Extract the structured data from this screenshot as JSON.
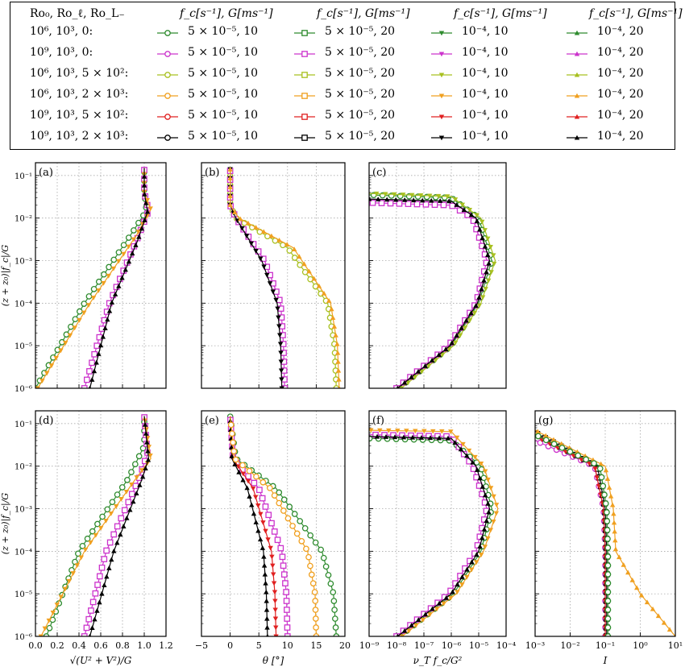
{
  "legend": {
    "row_header": "Ro₀, Ro_ℓ, Ro_L₋",
    "column_header": "f_c[s⁻¹], G[ms⁻¹]",
    "rows": [
      "10⁶, 10³, 0:",
      "10⁹, 10³, 0:",
      "10⁶, 10³, 5 × 10²:",
      "10⁶, 10³, 2 × 10³:",
      "10⁹, 10³, 5 × 10²:",
      "10⁹, 10³, 2 × 10³:"
    ],
    "columns": [
      {
        "label": "5 × 10⁻⁵, 10",
        "marker": "circle"
      },
      {
        "label": "5 × 10⁻⁵, 20",
        "marker": "square"
      },
      {
        "label": "10⁻⁴, 10",
        "marker": "tri-down"
      },
      {
        "label": "10⁻⁴, 20",
        "marker": "tri-up"
      }
    ],
    "row_colors": [
      "#2e8b2e",
      "#cc33cc",
      "#a8c020",
      "#f0a020",
      "#e02020",
      "#000000"
    ]
  },
  "chart_data": [
    {
      "panel": "(a)",
      "type": "line",
      "xscale": "linear",
      "yscale": "log",
      "xlim": [
        0,
        1.2
      ],
      "ylim": [
        1e-06,
        0.2
      ],
      "xlabel": "",
      "ylabel": "(z + z₀)|f_c|/G",
      "xticks": [],
      "yticks": [
        "10⁻⁶",
        "10⁻⁵",
        "10⁻⁴",
        "10⁻³",
        "10⁻²",
        "10⁻¹"
      ],
      "curves": [
        {
          "color": "#2e8b2e",
          "x": [
            0.0,
            0.45,
            0.9,
            1.02,
            1.0,
            1.0
          ],
          "y": [
            1e-06,
            0.0001,
            0.005,
            0.015,
            0.04,
            0.15
          ]
        },
        {
          "color": "#cc33cc",
          "x": [
            0.45,
            0.68,
            0.93,
            1.04,
            1.0,
            1.0
          ],
          "y": [
            1e-06,
            0.0001,
            0.003,
            0.015,
            0.04,
            0.15
          ]
        },
        {
          "color": "#f0a020",
          "x": [
            0.02,
            0.5,
            0.93,
            1.06,
            1.0,
            1.0
          ],
          "y": [
            1e-06,
            0.0001,
            0.004,
            0.016,
            0.04,
            0.15
          ]
        },
        {
          "color": "#000000",
          "x": [
            0.5,
            0.7,
            0.94,
            1.03,
            1.0,
            1.0
          ],
          "y": [
            1e-06,
            0.0001,
            0.003,
            0.014,
            0.04,
            0.15
          ]
        }
      ]
    },
    {
      "panel": "(b)",
      "type": "line",
      "xscale": "linear",
      "yscale": "log",
      "xlim": [
        -5,
        20
      ],
      "ylim": [
        1e-06,
        0.2
      ],
      "xlabel": "",
      "ylabel": "",
      "xticks": [],
      "yticks": [],
      "curves": [
        {
          "color": "#a8c020",
          "x": [
            18.5,
            18.2,
            17,
            10,
            1,
            0,
            0
          ],
          "y": [
            1e-06,
            1e-05,
            0.0001,
            0.002,
            0.01,
            0.02,
            0.15
          ]
        },
        {
          "color": "#cc33cc",
          "x": [
            9.5,
            9.3,
            8.8,
            6,
            1,
            0,
            0
          ],
          "y": [
            1e-06,
            1e-05,
            0.0001,
            0.001,
            0.01,
            0.02,
            0.15
          ]
        },
        {
          "color": "#000000",
          "x": [
            9,
            8.8,
            8.2,
            5.5,
            1,
            0,
            0
          ],
          "y": [
            1e-06,
            1e-05,
            0.0001,
            0.001,
            0.01,
            0.02,
            0.15
          ]
        },
        {
          "color": "#f0a020",
          "x": [
            19,
            18.7,
            17.5,
            11,
            1.5,
            0,
            0
          ],
          "y": [
            1e-06,
            1e-05,
            0.0001,
            0.002,
            0.01,
            0.02,
            0.15
          ]
        }
      ]
    },
    {
      "panel": "(c)",
      "type": "line",
      "xscale": "log",
      "yscale": "log",
      "xlim": [
        1e-09,
        0.0001
      ],
      "ylim": [
        1e-06,
        0.2
      ],
      "xlabel": "",
      "ylabel": "",
      "xticks": [],
      "yticks": [],
      "curves": [
        {
          "color": "#2e8b2e",
          "x": [
            1.2e-08,
            1e-06,
            1e-05,
            3e-05,
            1e-05,
            1e-06,
            1e-09
          ],
          "y": [
            1e-06,
            1e-05,
            0.0001,
            0.001,
            0.01,
            0.03,
            0.035
          ]
        },
        {
          "color": "#cc33cc",
          "x": [
            1e-08,
            8e-07,
            8e-06,
            2e-05,
            6e-06,
            1e-06,
            1e-09
          ],
          "y": [
            1e-06,
            1e-05,
            0.0001,
            0.001,
            0.01,
            0.02,
            0.023
          ]
        },
        {
          "color": "#a8c020",
          "x": [
            1.5e-08,
            1.2e-06,
            1.2e-05,
            4e-05,
            1.2e-05,
            1e-06,
            1e-09
          ],
          "y": [
            1e-06,
            1e-05,
            0.0001,
            0.001,
            0.01,
            0.032,
            0.038
          ]
        },
        {
          "color": "#000000",
          "x": [
            1.1e-08,
            9e-07,
            9e-06,
            2.5e-05,
            8e-06,
            1e-06,
            1e-09
          ],
          "y": [
            1e-06,
            1e-05,
            0.0001,
            0.001,
            0.01,
            0.025,
            0.028
          ]
        }
      ]
    },
    {
      "panel": "(d)",
      "type": "line",
      "xscale": "linear",
      "yscale": "log",
      "xlim": [
        0,
        1.2
      ],
      "ylim": [
        1e-06,
        0.2
      ],
      "xlabel": "√(U² + V²)/G",
      "ylabel": "(z + z₀)|f_c|/G",
      "xticks": [
        "0.0",
        "0.2",
        "0.4",
        "0.6",
        "0.8",
        "1.0",
        "1.2"
      ],
      "yticks": [
        "10⁻⁶",
        "10⁻⁵",
        "10⁻⁴",
        "10⁻³",
        "10⁻²",
        "10⁻¹"
      ],
      "curves": [
        {
          "color": "#2e8b2e",
          "x": [
            0.1,
            0.4,
            0.85,
            1.0,
            1.0
          ],
          "y": [
            1e-06,
            0.0001,
            0.005,
            0.03,
            0.15
          ]
        },
        {
          "color": "#cc33cc",
          "x": [
            0.45,
            0.65,
            0.95,
            1.03,
            1.0
          ],
          "y": [
            1e-06,
            0.0001,
            0.005,
            0.02,
            0.15
          ]
        },
        {
          "color": "#f0a020",
          "x": [
            0.05,
            0.45,
            0.92,
            1.06,
            1.0
          ],
          "y": [
            1e-06,
            0.0001,
            0.005,
            0.015,
            0.15
          ]
        },
        {
          "color": "#000000",
          "x": [
            0.5,
            0.72,
            0.98,
            1.04,
            1.0
          ],
          "y": [
            1e-06,
            0.0001,
            0.005,
            0.015,
            0.15
          ]
        }
      ]
    },
    {
      "panel": "(e)",
      "type": "line",
      "xscale": "linear",
      "yscale": "log",
      "xlim": [
        -5,
        20
      ],
      "ylim": [
        1e-06,
        0.2
      ],
      "xlabel": "θ [°]",
      "ylabel": "",
      "xticks": [
        "−5",
        "0",
        "5",
        "10",
        "15",
        "20"
      ],
      "yticks": [],
      "curves": [
        {
          "color": "#2e8b2e",
          "x": [
            18.5,
            18,
            16,
            8,
            1,
            0
          ],
          "y": [
            1e-06,
            1e-05,
            0.0001,
            0.003,
            0.015,
            0.15
          ]
        },
        {
          "color": "#cc33cc",
          "x": [
            10,
            9.8,
            9,
            5,
            0.5,
            0
          ],
          "y": [
            1e-06,
            1e-05,
            0.0001,
            0.003,
            0.015,
            0.15
          ]
        },
        {
          "color": "#e02020",
          "x": [
            8,
            7.8,
            7.2,
            4,
            0.5,
            0
          ],
          "y": [
            1e-06,
            1e-05,
            0.0001,
            0.003,
            0.015,
            0.15
          ]
        },
        {
          "color": "#000000",
          "x": [
            6.5,
            6.3,
            5.8,
            3,
            0.3,
            0
          ],
          "y": [
            1e-06,
            1e-05,
            0.0001,
            0.003,
            0.015,
            0.15
          ]
        },
        {
          "color": "#f0a020",
          "x": [
            15,
            14.8,
            13.5,
            7,
            0.8,
            0
          ],
          "y": [
            1e-06,
            1e-05,
            0.0001,
            0.003,
            0.015,
            0.15
          ]
        }
      ]
    },
    {
      "panel": "(f)",
      "type": "line",
      "xscale": "log",
      "yscale": "log",
      "xlim": [
        1e-09,
        0.0001
      ],
      "ylim": [
        1e-06,
        0.2
      ],
      "xlabel": "ν_T f_c/G²",
      "ylabel": "",
      "xticks": [
        "10⁻⁹",
        "10⁻⁸",
        "10⁻⁷",
        "10⁻⁶",
        "10⁻⁵",
        "10⁻⁴"
      ],
      "yticks": [],
      "curves": [
        {
          "color": "#2e8b2e",
          "x": [
            1.3e-08,
            1.2e-06,
            1.2e-05,
            3e-05,
            1.2e-05,
            1e-06,
            1e-09
          ],
          "y": [
            1e-06,
            1e-05,
            0.0001,
            0.001,
            0.01,
            0.04,
            0.045
          ]
        },
        {
          "color": "#cc33cc",
          "x": [
            1e-08,
            8e-07,
            8e-06,
            2e-05,
            6e-06,
            1e-06,
            1e-09
          ],
          "y": [
            1e-06,
            1e-05,
            0.0001,
            0.001,
            0.01,
            0.05,
            0.055
          ]
        },
        {
          "color": "#f0a020",
          "x": [
            1.6e-08,
            1.5e-06,
            1.5e-05,
            5e-05,
            1.5e-05,
            1e-06,
            1e-09
          ],
          "y": [
            1e-06,
            1e-05,
            0.0001,
            0.001,
            0.01,
            0.065,
            0.07
          ]
        },
        {
          "color": "#000000",
          "x": [
            1.1e-08,
            1e-06,
            1e-05,
            2.5e-05,
            8e-06,
            1e-06,
            1e-09
          ],
          "y": [
            1e-06,
            1e-05,
            0.0001,
            0.001,
            0.01,
            0.045,
            0.05
          ]
        }
      ]
    },
    {
      "panel": "(g)",
      "type": "line",
      "xscale": "log",
      "yscale": "log",
      "xlim": [
        0.001,
        10
      ],
      "ylim": [
        1e-06,
        0.2
      ],
      "xlabel": "I",
      "ylabel": "",
      "xticks": [
        "10⁻³",
        "10⁻²",
        "10⁻¹",
        "10⁰",
        "10¹"
      ],
      "yticks": [],
      "curves": [
        {
          "color": "#cc33cc",
          "x": [
            0.1,
            0.1,
            0.09,
            0.05,
            0.001
          ],
          "y": [
            1e-06,
            0.0001,
            0.001,
            0.01,
            0.04
          ]
        },
        {
          "color": "#000000",
          "x": [
            0.11,
            0.11,
            0.1,
            0.06,
            0.001
          ],
          "y": [
            1e-06,
            0.0001,
            0.001,
            0.01,
            0.06
          ]
        },
        {
          "color": "#e02020",
          "x": [
            0.1,
            0.1,
            0.09,
            0.05,
            0.001
          ],
          "y": [
            1e-06,
            0.0001,
            0.001,
            0.01,
            0.05
          ]
        },
        {
          "color": "#f0a020",
          "x": [
            10,
            1,
            0.2,
            0.17,
            0.1,
            0.001
          ],
          "y": [
            1e-06,
            1e-05,
            0.0001,
            0.001,
            0.01,
            0.07
          ]
        },
        {
          "color": "#2e8b2e",
          "x": [
            0.12,
            0.12,
            0.11,
            0.07,
            0.001
          ],
          "y": [
            1e-06,
            0.0001,
            0.001,
            0.01,
            0.055
          ]
        }
      ]
    }
  ]
}
